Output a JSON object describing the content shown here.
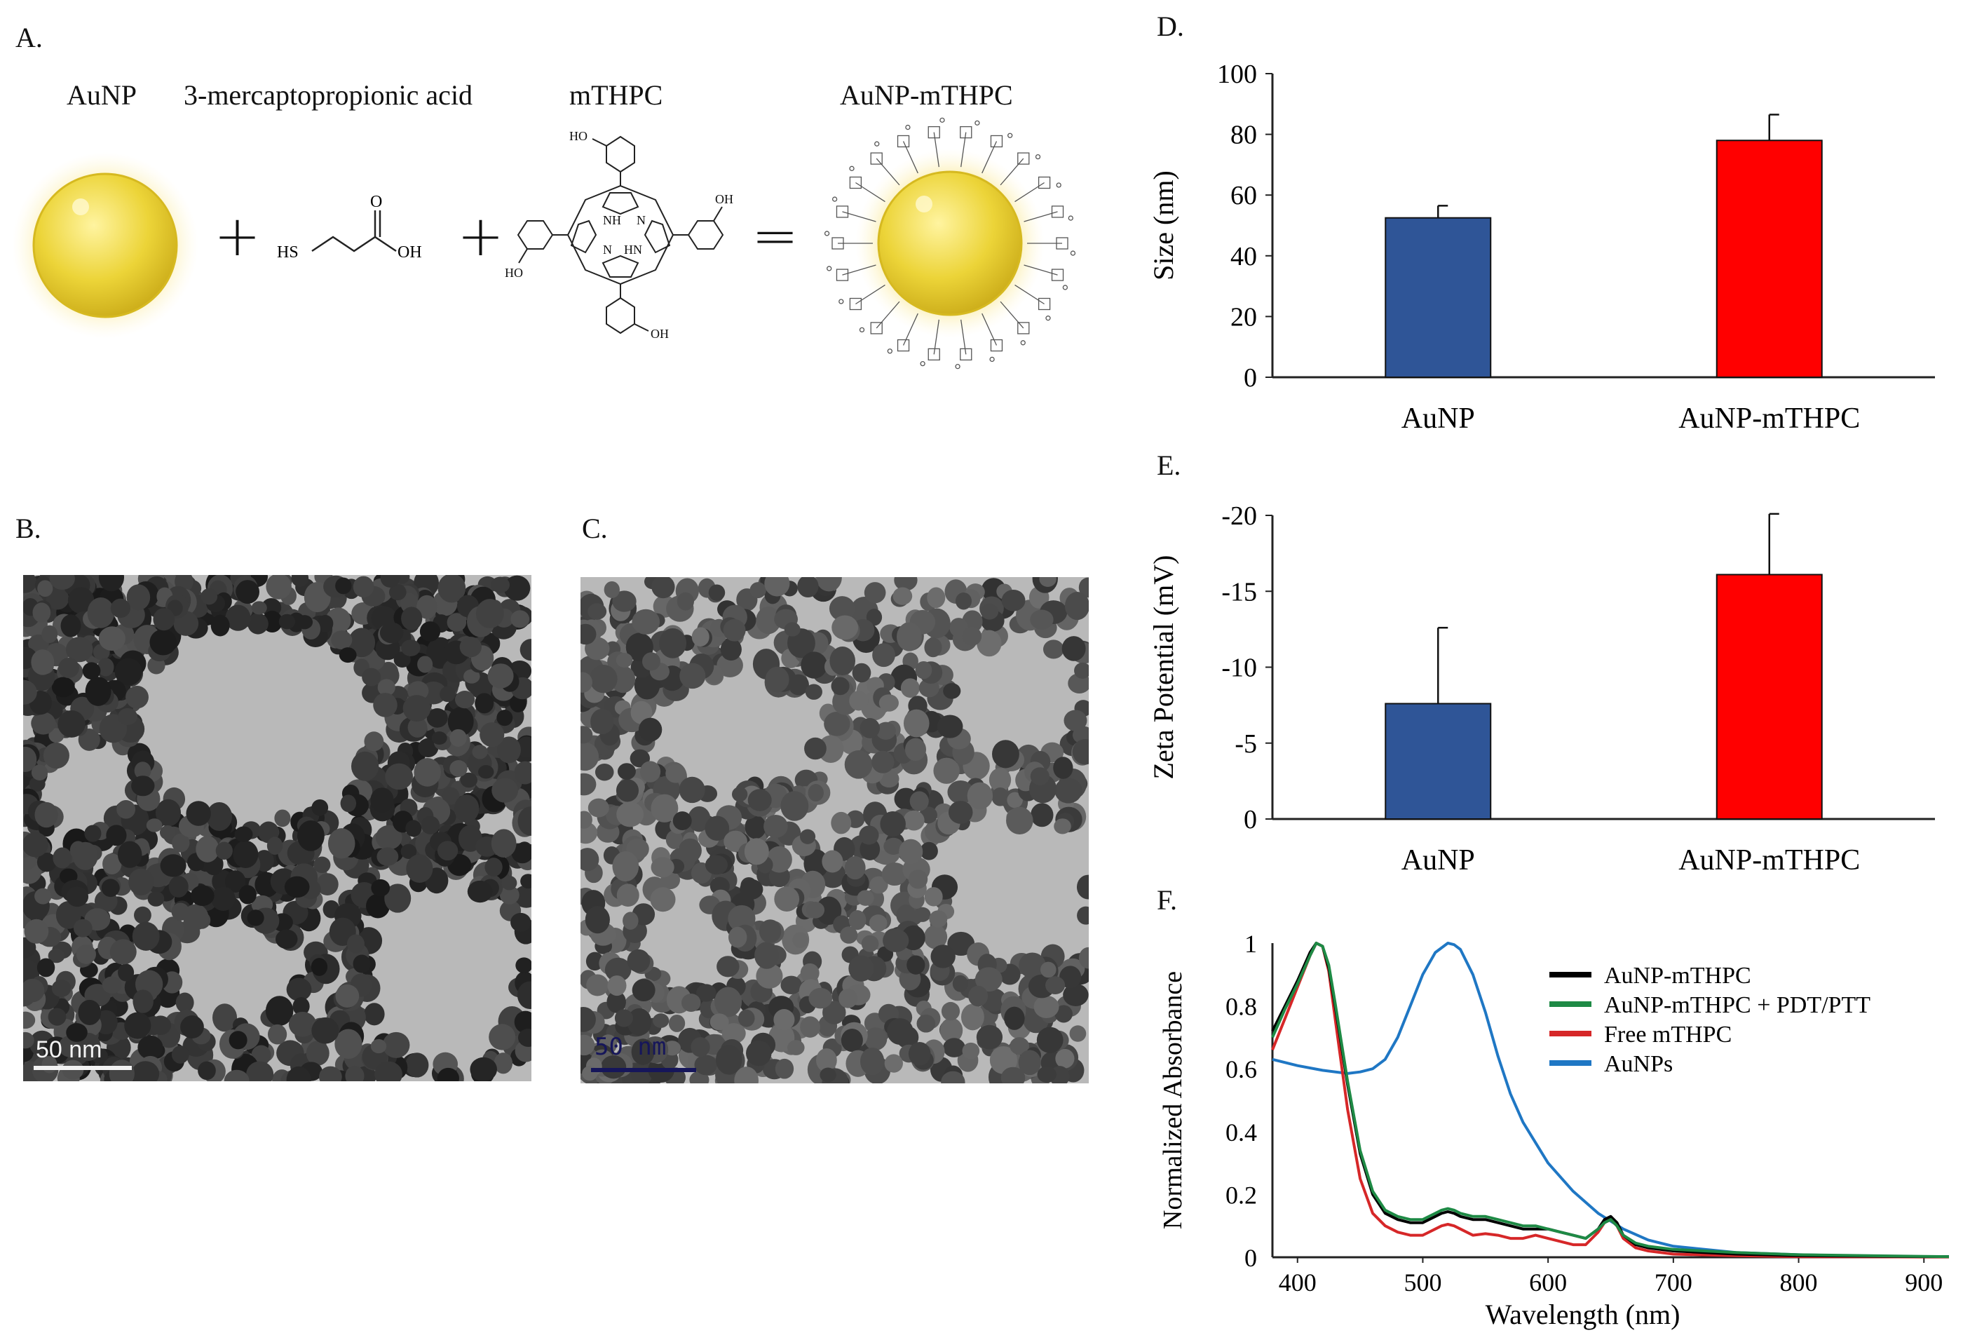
{
  "panels": {
    "a_label": "A.",
    "b_label": "B.",
    "c_label": "C.",
    "d_label": "D.",
    "e_label": "E.",
    "f_label": "F."
  },
  "scheme": {
    "reagent1": "AuNP",
    "reagent2": "3-mercaptopropionic acid",
    "reagent3": "mTHPC",
    "product": "AuNP-mTHPC",
    "plus": "+",
    "equals": "=",
    "mpa_atoms": {
      "sh": "HS",
      "o": "O",
      "oh": "OH"
    },
    "mthpc_atoms": {
      "ho_top": "HO",
      "oh_right": "OH",
      "ho_left": "HO",
      "oh_bottom": "OH",
      "nh": "NH",
      "n_top": "N",
      "n_bottom": "N",
      "hn": "HN"
    }
  },
  "tem": {
    "b_scalebar": "50 nm",
    "c_scalebar": "50 nm"
  },
  "chart_data": [
    {
      "type": "bar",
      "panel": "D",
      "categories": [
        "AuNP",
        "AuNP-mTHPC"
      ],
      "values": [
        52.5,
        78
      ],
      "errors": [
        4,
        8.5
      ],
      "colors": [
        "#2f5597",
        "#ff0000"
      ],
      "ylabel": "Size (nm)",
      "ylim": [
        0,
        100
      ],
      "yticks": [
        "0",
        "20",
        "40",
        "60",
        "80",
        "100"
      ]
    },
    {
      "type": "bar",
      "panel": "E",
      "categories": [
        "AuNP",
        "AuNP-mTHPC"
      ],
      "values": [
        -7.6,
        -16.1
      ],
      "errors": [
        5,
        4
      ],
      "colors": [
        "#2f5597",
        "#ff0000"
      ],
      "ylabel": "Zeta Potential (mV)",
      "ylim": [
        0,
        -20
      ],
      "yticks": [
        "0",
        "-5",
        "-10",
        "-15",
        "-20"
      ]
    },
    {
      "type": "line",
      "panel": "F",
      "xlabel": "Wavelength (nm)",
      "ylabel": "Normalized Absorbance",
      "xlim": [
        380,
        920
      ],
      "ylim": [
        0,
        1
      ],
      "xticks": [
        "400",
        "500",
        "600",
        "700",
        "800",
        "900"
      ],
      "yticks": [
        "0",
        "0.2",
        "0.4",
        "0.6",
        "0.8",
        "1"
      ],
      "legend_position": "top-right",
      "series": [
        {
          "name": "AuNP-mTHPC",
          "color": "#000000",
          "x": [
            380,
            390,
            400,
            410,
            415,
            420,
            425,
            430,
            440,
            450,
            460,
            470,
            480,
            490,
            500,
            510,
            515,
            520,
            525,
            530,
            540,
            550,
            560,
            570,
            580,
            590,
            600,
            610,
            620,
            630,
            640,
            645,
            650,
            655,
            660,
            670,
            680,
            700,
            750,
            800,
            900,
            920
          ],
          "y": [
            0.72,
            0.8,
            0.88,
            0.97,
            1.0,
            0.99,
            0.92,
            0.8,
            0.55,
            0.33,
            0.2,
            0.14,
            0.12,
            0.11,
            0.11,
            0.13,
            0.14,
            0.145,
            0.14,
            0.13,
            0.12,
            0.12,
            0.11,
            0.1,
            0.09,
            0.09,
            0.09,
            0.08,
            0.07,
            0.06,
            0.09,
            0.12,
            0.13,
            0.11,
            0.07,
            0.04,
            0.03,
            0.02,
            0.01,
            0.005,
            0.002,
            0.002
          ]
        },
        {
          "name": "AuNP-mTHPC + PDT/PTT",
          "color": "#1e8a45",
          "x": [
            380,
            390,
            400,
            410,
            415,
            420,
            425,
            430,
            440,
            450,
            460,
            470,
            480,
            490,
            500,
            510,
            515,
            520,
            525,
            530,
            540,
            550,
            560,
            570,
            580,
            590,
            600,
            610,
            620,
            630,
            640,
            645,
            650,
            655,
            660,
            670,
            680,
            700,
            750,
            800,
            900,
            920
          ],
          "y": [
            0.7,
            0.79,
            0.87,
            0.96,
            1.0,
            0.99,
            0.93,
            0.81,
            0.56,
            0.34,
            0.21,
            0.15,
            0.13,
            0.12,
            0.12,
            0.14,
            0.15,
            0.155,
            0.15,
            0.14,
            0.13,
            0.13,
            0.12,
            0.11,
            0.1,
            0.1,
            0.09,
            0.08,
            0.07,
            0.06,
            0.09,
            0.11,
            0.12,
            0.1,
            0.07,
            0.045,
            0.035,
            0.025,
            0.015,
            0.008,
            0.003,
            0.002
          ]
        },
        {
          "name": "Free mTHPC",
          "color": "#d62728",
          "x": [
            380,
            390,
            400,
            410,
            415,
            420,
            425,
            430,
            440,
            450,
            460,
            470,
            480,
            490,
            500,
            510,
            515,
            520,
            525,
            530,
            540,
            550,
            560,
            570,
            580,
            590,
            600,
            610,
            620,
            630,
            640,
            645,
            650,
            655,
            660,
            670,
            680,
            700,
            750,
            800,
            900,
            920
          ],
          "y": [
            0.66,
            0.76,
            0.86,
            0.96,
            1.0,
            0.99,
            0.91,
            0.76,
            0.47,
            0.25,
            0.14,
            0.1,
            0.08,
            0.07,
            0.07,
            0.09,
            0.1,
            0.105,
            0.1,
            0.09,
            0.07,
            0.075,
            0.07,
            0.06,
            0.06,
            0.07,
            0.06,
            0.05,
            0.04,
            0.04,
            0.08,
            0.11,
            0.12,
            0.1,
            0.06,
            0.03,
            0.02,
            0.01,
            0.005,
            0.002,
            0.001,
            0.001
          ]
        },
        {
          "name": "AuNPs",
          "color": "#1f77c4",
          "x": [
            380,
            400,
            420,
            440,
            450,
            460,
            470,
            480,
            490,
            500,
            510,
            520,
            525,
            530,
            540,
            550,
            560,
            570,
            580,
            600,
            620,
            640,
            660,
            680,
            700,
            750,
            800,
            850,
            900,
            920
          ],
          "y": [
            0.63,
            0.61,
            0.595,
            0.585,
            0.59,
            0.6,
            0.63,
            0.7,
            0.8,
            0.9,
            0.97,
            1.0,
            0.995,
            0.98,
            0.9,
            0.78,
            0.64,
            0.52,
            0.43,
            0.3,
            0.21,
            0.14,
            0.09,
            0.055,
            0.035,
            0.015,
            0.008,
            0.004,
            0.002,
            0.002
          ]
        }
      ]
    }
  ]
}
